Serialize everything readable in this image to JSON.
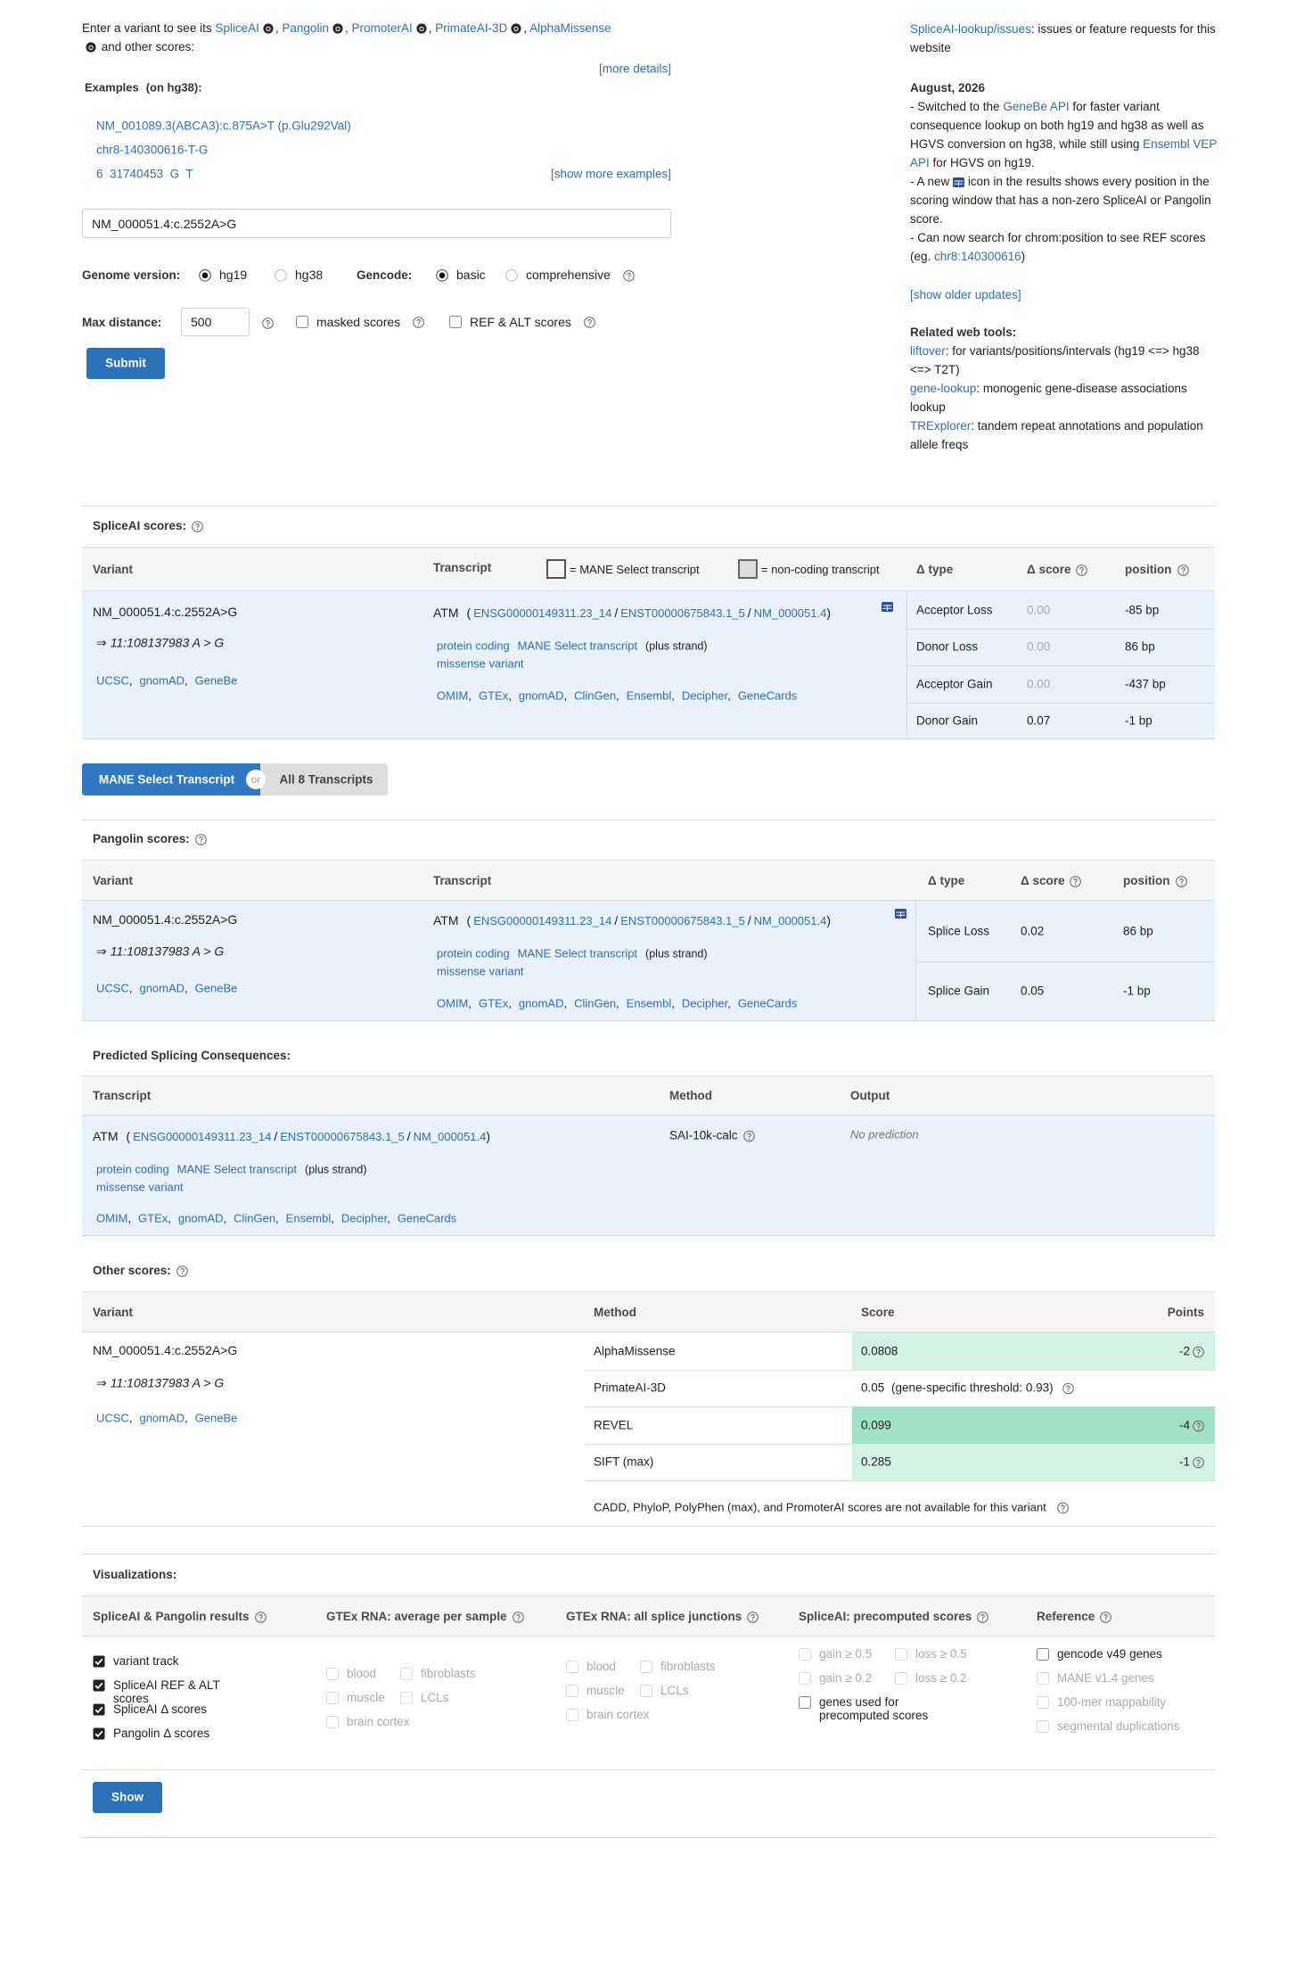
{
  "intro": {
    "lead": "Enter a variant to see its",
    "tools": [
      "SpliceAI",
      "Pangolin",
      "PromoterAI",
      "PrimateAI-3D",
      "AlphaMissense"
    ],
    "sep": ",",
    "tail": "and other scores:",
    "more_details": "[more details]"
  },
  "examples": {
    "title": "Examples",
    "build": "(on hg38):",
    "items": [
      "NM_001089.3(ABCA3):c.875A>T (p.Glu292Val)",
      "chr8-140300616-T-G",
      "6  31740453  G  T"
    ],
    "more": "[show more examples]"
  },
  "form": {
    "input": "NM_000051.4:c.2552A>G",
    "genome_label": "Genome version:",
    "genome_options": [
      {
        "label": "hg19",
        "selected": true
      },
      {
        "label": "hg38",
        "selected": false
      }
    ],
    "gencode_label": "Gencode:",
    "gencode_options": [
      {
        "label": "basic",
        "selected": true
      },
      {
        "label": "comprehensive",
        "selected": false
      }
    ],
    "max_distance_label": "Max distance:",
    "max_distance": "500",
    "options": [
      {
        "label": "masked scores",
        "checked": false
      },
      {
        "label": "REF & ALT scores",
        "checked": false
      }
    ],
    "submit": "Submit"
  },
  "sidebar": {
    "issues": [
      {
        "text": "SpliceAI-lookup/issues",
        "link": true
      },
      {
        "text": ": issues or feature requests for this website"
      }
    ],
    "date": "August, 2026",
    "news": [
      [
        {
          "text": "- Switched to the "
        },
        {
          "text": "GeneBe API",
          "link": true
        },
        {
          "text": " for faster variant consequence lookup on both hg19 and hg38 as well as HGVS conversion on hg38, while still using "
        },
        {
          "text": "Ensembl VEP API",
          "link": true
        },
        {
          "text": " for HGVS on hg19."
        }
      ],
      {
        "before": "- A new",
        "after": "icon in the results shows every position in the scoring window that has a non-zero SpliceAI or Pangolin score."
      },
      [
        {
          "text": "- Can now search for chrom:position to see REF scores (eg. "
        },
        {
          "text": "chr8:140300616",
          "link": true
        },
        {
          "text": ")"
        }
      ]
    ],
    "older": "[show older updates]",
    "related_title": "Related web tools:",
    "related": [
      [
        {
          "text": "liftover",
          "link": true
        },
        {
          "text": ": for variants/positions/intervals (hg19 <=> hg38 <=> T2T)"
        }
      ],
      [
        {
          "text": "gene-lookup",
          "link": true
        },
        {
          "text": ": monogenic gene-disease associations lookup"
        }
      ],
      [
        {
          "text": "TRExplorer",
          "link": true
        },
        {
          "text": ": tandem repeat annotations and population allele freqs"
        }
      ]
    ]
  },
  "spliceai": {
    "title": "SpliceAI scores:",
    "headers": {
      "variant": "Variant",
      "transcript": "Transcript",
      "mane_legend": "= MANE Select transcript",
      "noncoding_legend": "= non-coding transcript",
      "type": "Δ type",
      "score": "Δ score",
      "position": "position"
    },
    "variant": {
      "name": "NM_000051.4:c.2552A>G",
      "arrow": "⇒",
      "locus": "11:108137983 A > G",
      "links": [
        "UCSC",
        "gnomAD",
        "GeneBe"
      ],
      "link_sep": ","
    },
    "transcript": {
      "gene": "ATM",
      "open": "(",
      "ids": [
        "ENSG00000149311.23_14",
        "ENST00000675843.1_5",
        "NM_000051.4"
      ],
      "id_sep": "/",
      "close": ")",
      "biotype": "protein coding",
      "mane": "MANE Select transcript",
      "strand": "(plus strand)",
      "consequence": "missense variant",
      "links": [
        "OMIM",
        "GTEx",
        "gnomAD",
        "ClinGen",
        "Ensembl",
        "Decipher",
        "GeneCards"
      ],
      "link_sep": ","
    },
    "rows": [
      [
        "Acceptor Loss",
        "0.00",
        "-85 bp"
      ],
      [
        "Donor Loss",
        "0.00",
        "86 bp"
      ],
      [
        "Acceptor Gain",
        "0.00",
        "-437 bp"
      ],
      [
        "Donor Gain",
        "0.07",
        "-1 bp"
      ]
    ]
  },
  "toggle": {
    "mane": "MANE Select Transcript",
    "or": "or",
    "all": "All 8 Transcripts"
  },
  "pangolin": {
    "title": "Pangolin scores:",
    "headers": {
      "variant": "Variant",
      "transcript": "Transcript",
      "type": "Δ type",
      "score": "Δ score",
      "position": "position"
    },
    "variant": {
      "name": "NM_000051.4:c.2552A>G",
      "arrow": "⇒",
      "locus": "11:108137983 A > G",
      "links": [
        "UCSC",
        "gnomAD",
        "GeneBe"
      ],
      "link_sep": ","
    },
    "transcript": {
      "gene": "ATM",
      "open": "(",
      "ids": [
        "ENSG00000149311.23_14",
        "ENST00000675843.1_5",
        "NM_000051.4"
      ],
      "id_sep": "/",
      "close": ")",
      "biotype": "protein coding",
      "mane": "MANE Select transcript",
      "strand": "(plus strand)",
      "consequence": "missense variant",
      "links": [
        "OMIM",
        "GTEx",
        "gnomAD",
        "ClinGen",
        "Ensembl",
        "Decipher",
        "GeneCards"
      ],
      "link_sep": ","
    },
    "rows": [
      [
        "Splice Loss",
        "0.02",
        "86 bp"
      ],
      [
        "Splice Gain",
        "0.05",
        "-1 bp"
      ]
    ]
  },
  "consequences": {
    "title": "Predicted Splicing Consequences:",
    "headers": [
      "Transcript",
      "Method",
      "Output"
    ],
    "transcript": {
      "gene": "ATM",
      "open": "(",
      "ids": [
        "ENSG00000149311.23_14",
        "ENST00000675843.1_5",
        "NM_000051.4"
      ],
      "id_sep": "/",
      "close": ")",
      "biotype": "protein coding",
      "mane": "MANE Select transcript",
      "strand": "(plus strand)",
      "consequence": "missense variant",
      "links": [
        "OMIM",
        "GTEx",
        "gnomAD",
        "ClinGen",
        "Ensembl",
        "Decipher",
        "GeneCards"
      ],
      "link_sep": ","
    },
    "method": "SAI-10k-calc",
    "output": "No prediction"
  },
  "other": {
    "title": "Other scores:",
    "headers": [
      "Variant",
      "Method",
      "Score",
      "Points"
    ],
    "variant": {
      "name": "NM_000051.4:c.2552A>G",
      "arrow": "⇒",
      "locus": "11:108137983 A > G",
      "links": [
        "UCSC",
        "gnomAD",
        "GeneBe"
      ],
      "link_sep": ","
    },
    "rows": [
      {
        "method": "AlphaMissense",
        "score": "0.0808",
        "points": "-2",
        "color": "#d3f2e3"
      },
      {
        "method": "PrimateAI-3D",
        "score": "0.05",
        "threshold": "(gene-specific threshold: 0.93)"
      },
      {
        "method": "REVEL",
        "score": "0.099",
        "points": "-4",
        "color": "#a2e2c6"
      },
      {
        "method": "SIFT (max)",
        "score": "0.285",
        "points": "-1",
        "color": "#d3f2e3"
      }
    ],
    "note": "CADD, PhyloP, PolyPhen (max), and PromoterAI scores are not available for this variant"
  },
  "visualizations": {
    "title": "Visualizations:",
    "columns": [
      {
        "title": "SpliceAI & Pangolin results",
        "rows": [
          [
            {
              "label": "variant track",
              "checked": true,
              "enabled": true
            }
          ],
          [
            {
              "label": "SpliceAI REF & ALT scores",
              "checked": true,
              "enabled": true
            }
          ],
          [
            {
              "label": "SpliceAI Δ scores",
              "checked": true,
              "enabled": true
            }
          ],
          [
            {
              "label": "Pangolin Δ scores",
              "checked": true,
              "enabled": true
            }
          ]
        ]
      },
      {
        "title": "GTEx RNA: average per sample",
        "rows": [
          [
            {
              "label": "blood",
              "checked": false,
              "enabled": false
            },
            {
              "label": "fibroblasts",
              "checked": false,
              "enabled": false
            }
          ],
          [
            {
              "label": "muscle",
              "checked": false,
              "enabled": false
            },
            {
              "label": "LCLs",
              "checked": false,
              "enabled": false
            }
          ],
          [
            {
              "label": "brain cortex",
              "checked": false,
              "enabled": false
            }
          ]
        ]
      },
      {
        "title": "GTEx RNA: all splice junctions",
        "rows": [
          [
            {
              "label": "blood",
              "checked": false,
              "enabled": false
            },
            {
              "label": "fibroblasts",
              "checked": false,
              "enabled": false
            }
          ],
          [
            {
              "label": "muscle",
              "checked": false,
              "enabled": false
            },
            {
              "label": "LCLs",
              "checked": false,
              "enabled": false
            }
          ],
          [
            {
              "label": "brain cortex",
              "checked": false,
              "enabled": false
            }
          ]
        ]
      },
      {
        "title": "SpliceAI: precomputed scores",
        "rows": [
          [
            {
              "label": "gain ≥ 0.5",
              "checked": false,
              "enabled": false
            },
            {
              "label": "loss ≥ 0.5",
              "checked": false,
              "enabled": false
            }
          ],
          [
            {
              "label": "gain ≥ 0.2",
              "checked": false,
              "enabled": false
            },
            {
              "label": "loss ≥ 0.2",
              "checked": false,
              "enabled": false
            }
          ],
          [
            {
              "label": "genes used for precomputed scores",
              "checked": false,
              "enabled": true
            }
          ]
        ]
      },
      {
        "title": "Reference",
        "rows": [
          [
            {
              "label": "gencode v49 genes",
              "checked": false,
              "enabled": true
            }
          ],
          [
            {
              "label": "MANE v1.4 genes",
              "checked": false,
              "enabled": false
            }
          ],
          [
            {
              "label": "100-mer mappability",
              "checked": false,
              "enabled": false
            }
          ],
          [
            {
              "label": "segmental duplications",
              "checked": false,
              "enabled": false
            }
          ]
        ]
      }
    ],
    "button": "Show"
  }
}
